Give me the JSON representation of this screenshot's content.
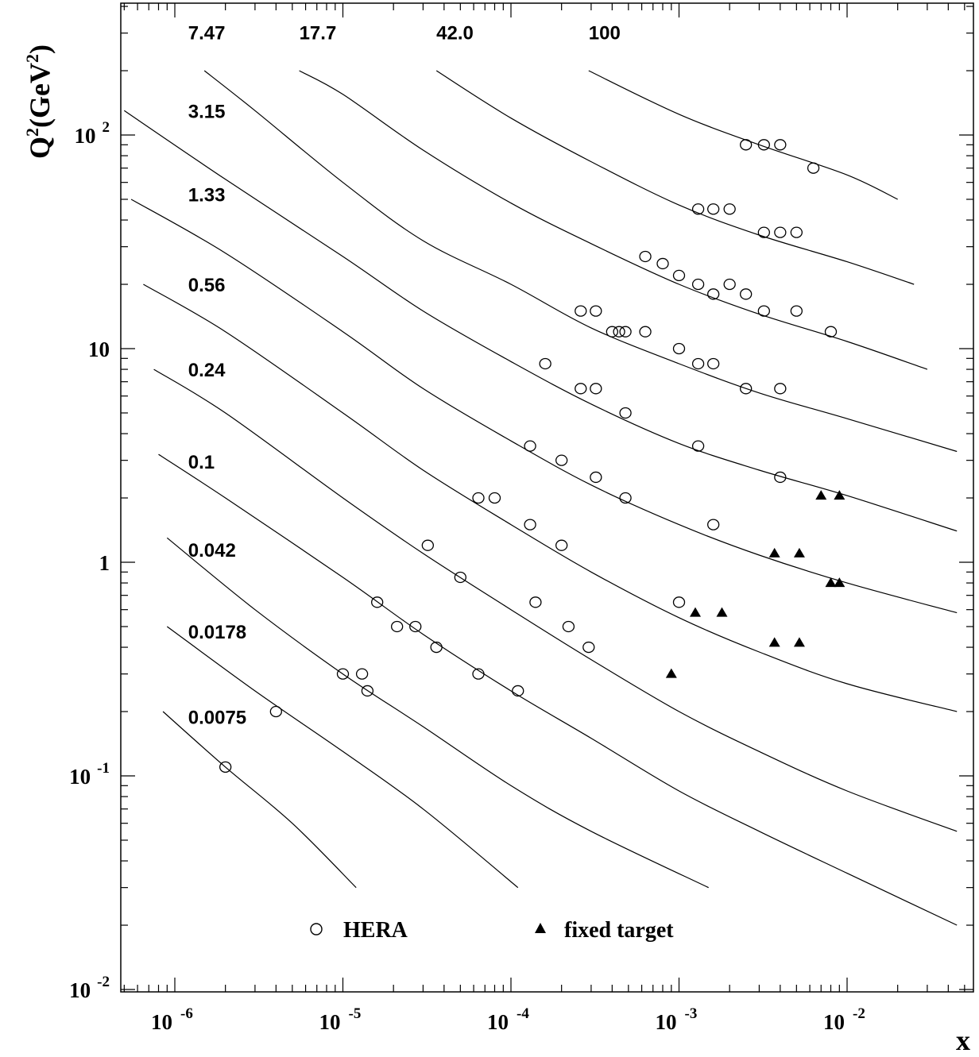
{
  "chart_data": {
    "type": "scatter",
    "xlabel": "x",
    "ylabel": {
      "base": "Q",
      "sup1": "2",
      "unit": "(GeV",
      "sup2": "2",
      "close": ")"
    },
    "x_scale": "log",
    "y_scale": "log",
    "xlim": [
      5e-07,
      0.05
    ],
    "ylim": [
      0.01,
      500
    ],
    "grid": false,
    "x_ticks": [
      {
        "value": 1e-06,
        "base": "10",
        "exp": "-6"
      },
      {
        "value": 1e-05,
        "base": "10",
        "exp": "-5"
      },
      {
        "value": 0.0001,
        "base": "10",
        "exp": "-4"
      },
      {
        "value": 0.001,
        "base": "10",
        "exp": "-3"
      },
      {
        "value": 0.01,
        "base": "10",
        "exp": "-2"
      }
    ],
    "y_ticks": [
      {
        "value": 100,
        "base": "10",
        "exp": "2"
      },
      {
        "value": 10,
        "base": "10",
        "exp": ""
      },
      {
        "value": 1,
        "base": "1",
        "exp": ""
      },
      {
        "value": 0.1,
        "base": "10",
        "exp": "-1"
      },
      {
        "value": 0.01,
        "base": "10",
        "exp": "-2"
      }
    ],
    "curves": [
      {
        "label": "0.0075",
        "label_x": 1.2e-06,
        "label_y": 0.175,
        "points": [
          [
            8.5e-07,
            0.2
          ],
          [
            2e-06,
            0.11
          ],
          [
            5e-06,
            0.06
          ],
          [
            1.2e-05,
            0.03
          ]
        ]
      },
      {
        "label": "0.0178",
        "label_x": 1.2e-06,
        "label_y": 0.44,
        "points": [
          [
            9e-07,
            0.5
          ],
          [
            3e-06,
            0.25
          ],
          [
            1e-05,
            0.13
          ],
          [
            3e-05,
            0.07
          ],
          [
            0.00011,
            0.03
          ]
        ]
      },
      {
        "label": "0.042",
        "label_x": 1.2e-06,
        "label_y": 1.06,
        "points": [
          [
            9e-07,
            1.3
          ],
          [
            3e-06,
            0.6
          ],
          [
            1e-05,
            0.3
          ],
          [
            3e-05,
            0.17
          ],
          [
            0.0001,
            0.09
          ],
          [
            0.0003,
            0.055
          ],
          [
            0.0015,
            0.03
          ]
        ]
      },
      {
        "label": "0.1",
        "label_x": 1.2e-06,
        "label_y": 2.75,
        "points": [
          [
            8e-07,
            3.2
          ],
          [
            2e-06,
            2.0
          ],
          [
            1e-05,
            0.85
          ],
          [
            3e-05,
            0.46
          ],
          [
            0.0001,
            0.25
          ],
          [
            0.0003,
            0.15
          ],
          [
            0.001,
            0.085
          ],
          [
            0.003,
            0.055
          ],
          [
            0.01,
            0.035
          ],
          [
            0.045,
            0.02
          ]
        ]
      },
      {
        "label": "0.24",
        "label_x": 1.2e-06,
        "label_y": 7.4,
        "points": [
          [
            7.5e-07,
            8.0
          ],
          [
            2e-06,
            5.0
          ],
          [
            1e-05,
            2.0
          ],
          [
            3e-05,
            1.1
          ],
          [
            0.0001,
            0.6
          ],
          [
            0.0003,
            0.35
          ],
          [
            0.001,
            0.2
          ],
          [
            0.003,
            0.13
          ],
          [
            0.01,
            0.085
          ],
          [
            0.045,
            0.055
          ]
        ]
      },
      {
        "label": "0.56",
        "label_x": 1.2e-06,
        "label_y": 18.5,
        "points": [
          [
            6.5e-07,
            20
          ],
          [
            2e-06,
            12
          ],
          [
            1e-05,
            5.0
          ],
          [
            3e-05,
            2.7
          ],
          [
            0.0001,
            1.5
          ],
          [
            0.0003,
            0.9
          ],
          [
            0.001,
            0.55
          ],
          [
            0.003,
            0.38
          ],
          [
            0.01,
            0.27
          ],
          [
            0.045,
            0.2
          ]
        ]
      },
      {
        "label": "1.33",
        "label_x": 1.2e-06,
        "label_y": 49,
        "points": [
          [
            5.5e-07,
            50
          ],
          [
            2e-06,
            28
          ],
          [
            1e-05,
            12
          ],
          [
            3e-05,
            6.5
          ],
          [
            0.0001,
            3.7
          ],
          [
            0.0003,
            2.3
          ],
          [
            0.001,
            1.5
          ],
          [
            0.003,
            1.08
          ],
          [
            0.01,
            0.8
          ],
          [
            0.045,
            0.58
          ]
        ]
      },
      {
        "label": "3.15",
        "label_x": 1.2e-06,
        "label_y": 120,
        "points": [
          [
            5e-07,
            130
          ],
          [
            2e-06,
            62
          ],
          [
            1e-05,
            27
          ],
          [
            3e-05,
            15
          ],
          [
            0.0001,
            8.7
          ],
          [
            0.0003,
            5.5
          ],
          [
            0.001,
            3.6
          ],
          [
            0.003,
            2.7
          ],
          [
            0.01,
            2.05
          ],
          [
            0.045,
            1.4
          ]
        ]
      },
      {
        "label": "7.47",
        "label_x": 1.2e-06,
        "label_y": 280,
        "points": [
          [
            1.5e-06,
            200
          ],
          [
            3e-06,
            130
          ],
          [
            1e-05,
            60
          ],
          [
            3e-05,
            32
          ],
          [
            0.0001,
            20
          ],
          [
            0.0003,
            12.5
          ],
          [
            0.001,
            8.5
          ],
          [
            0.003,
            6.2
          ],
          [
            0.01,
            4.7
          ],
          [
            0.045,
            3.3
          ]
        ]
      },
      {
        "label": "17.7",
        "label_x": 5.5e-06,
        "label_y": 280,
        "points": [
          [
            5.5e-06,
            200
          ],
          [
            1e-05,
            155
          ],
          [
            3e-05,
            85
          ],
          [
            0.0001,
            48
          ],
          [
            0.0003,
            31
          ],
          [
            0.001,
            20
          ],
          [
            0.003,
            14.5
          ],
          [
            0.01,
            10.8
          ],
          [
            0.03,
            8
          ]
        ]
      },
      {
        "label": "42.0",
        "label_x": 3.6e-05,
        "label_y": 280,
        "points": [
          [
            3.6e-05,
            200
          ],
          [
            0.0001,
            120
          ],
          [
            0.0003,
            75
          ],
          [
            0.001,
            47
          ],
          [
            0.003,
            34
          ],
          [
            0.01,
            25.5
          ],
          [
            0.025,
            20
          ]
        ]
      },
      {
        "label": "100",
        "label_x": 0.00029,
        "label_y": 280,
        "points": [
          [
            0.00029,
            200
          ],
          [
            0.001,
            125
          ],
          [
            0.003,
            90
          ],
          [
            0.01,
            65
          ],
          [
            0.02,
            50
          ]
        ]
      }
    ],
    "series": [
      {
        "name": "HERA",
        "marker": "open-circle",
        "points": [
          [
            2e-06,
            0.11
          ],
          [
            4e-06,
            0.2
          ],
          [
            1e-05,
            0.3
          ],
          [
            1.3e-05,
            0.3
          ],
          [
            1.4e-05,
            0.25
          ],
          [
            1.6e-05,
            0.65
          ],
          [
            2.1e-05,
            0.5
          ],
          [
            2.7e-05,
            0.5
          ],
          [
            3.2e-05,
            1.2
          ],
          [
            3.6e-05,
            0.4
          ],
          [
            5e-05,
            0.85
          ],
          [
            6.4e-05,
            2.0
          ],
          [
            6.4e-05,
            0.3
          ],
          [
            8e-05,
            2.0
          ],
          [
            0.00011,
            0.25
          ],
          [
            0.00013,
            3.5
          ],
          [
            0.00013,
            1.5
          ],
          [
            0.00014,
            0.65
          ],
          [
            0.00016,
            8.5
          ],
          [
            0.0002,
            3.0
          ],
          [
            0.0002,
            1.2
          ],
          [
            0.00022,
            0.5
          ],
          [
            0.00026,
            15
          ],
          [
            0.00026,
            6.5
          ],
          [
            0.00029,
            0.4
          ],
          [
            0.00032,
            15
          ],
          [
            0.00032,
            6.5
          ],
          [
            0.00032,
            2.5
          ],
          [
            0.0004,
            12
          ],
          [
            0.00044,
            12
          ],
          [
            0.00048,
            12
          ],
          [
            0.00048,
            5.0
          ],
          [
            0.00048,
            2.0
          ],
          [
            0.00063,
            27
          ],
          [
            0.00063,
            12
          ],
          [
            0.0008,
            25
          ],
          [
            0.001,
            22
          ],
          [
            0.001,
            10
          ],
          [
            0.001,
            0.65
          ],
          [
            0.0013,
            45
          ],
          [
            0.0013,
            20
          ],
          [
            0.0013,
            8.5
          ],
          [
            0.0013,
            3.5
          ],
          [
            0.0016,
            45
          ],
          [
            0.0016,
            18
          ],
          [
            0.0016,
            8.5
          ],
          [
            0.0016,
            1.5
          ],
          [
            0.002,
            45
          ],
          [
            0.002,
            20
          ],
          [
            0.0025,
            90
          ],
          [
            0.0025,
            18
          ],
          [
            0.0025,
            6.5
          ],
          [
            0.0032,
            90
          ],
          [
            0.0032,
            35
          ],
          [
            0.0032,
            15
          ],
          [
            0.004,
            90
          ],
          [
            0.004,
            35
          ],
          [
            0.004,
            6.5
          ],
          [
            0.004,
            2.5
          ],
          [
            0.005,
            35
          ],
          [
            0.005,
            15
          ],
          [
            0.0063,
            70
          ],
          [
            0.008,
            12
          ]
        ]
      },
      {
        "name": "fixed target",
        "marker": "filled-triangle",
        "points": [
          [
            0.0009,
            0.3
          ],
          [
            0.00125,
            0.58
          ],
          [
            0.0018,
            0.58
          ],
          [
            0.0037,
            1.1
          ],
          [
            0.0037,
            0.42
          ],
          [
            0.0052,
            1.1
          ],
          [
            0.0052,
            0.42
          ],
          [
            0.007,
            2.05
          ],
          [
            0.008,
            0.8
          ],
          [
            0.009,
            2.05
          ],
          [
            0.009,
            0.8
          ]
        ]
      }
    ],
    "legend": {
      "placement": "bottom-center"
    }
  }
}
